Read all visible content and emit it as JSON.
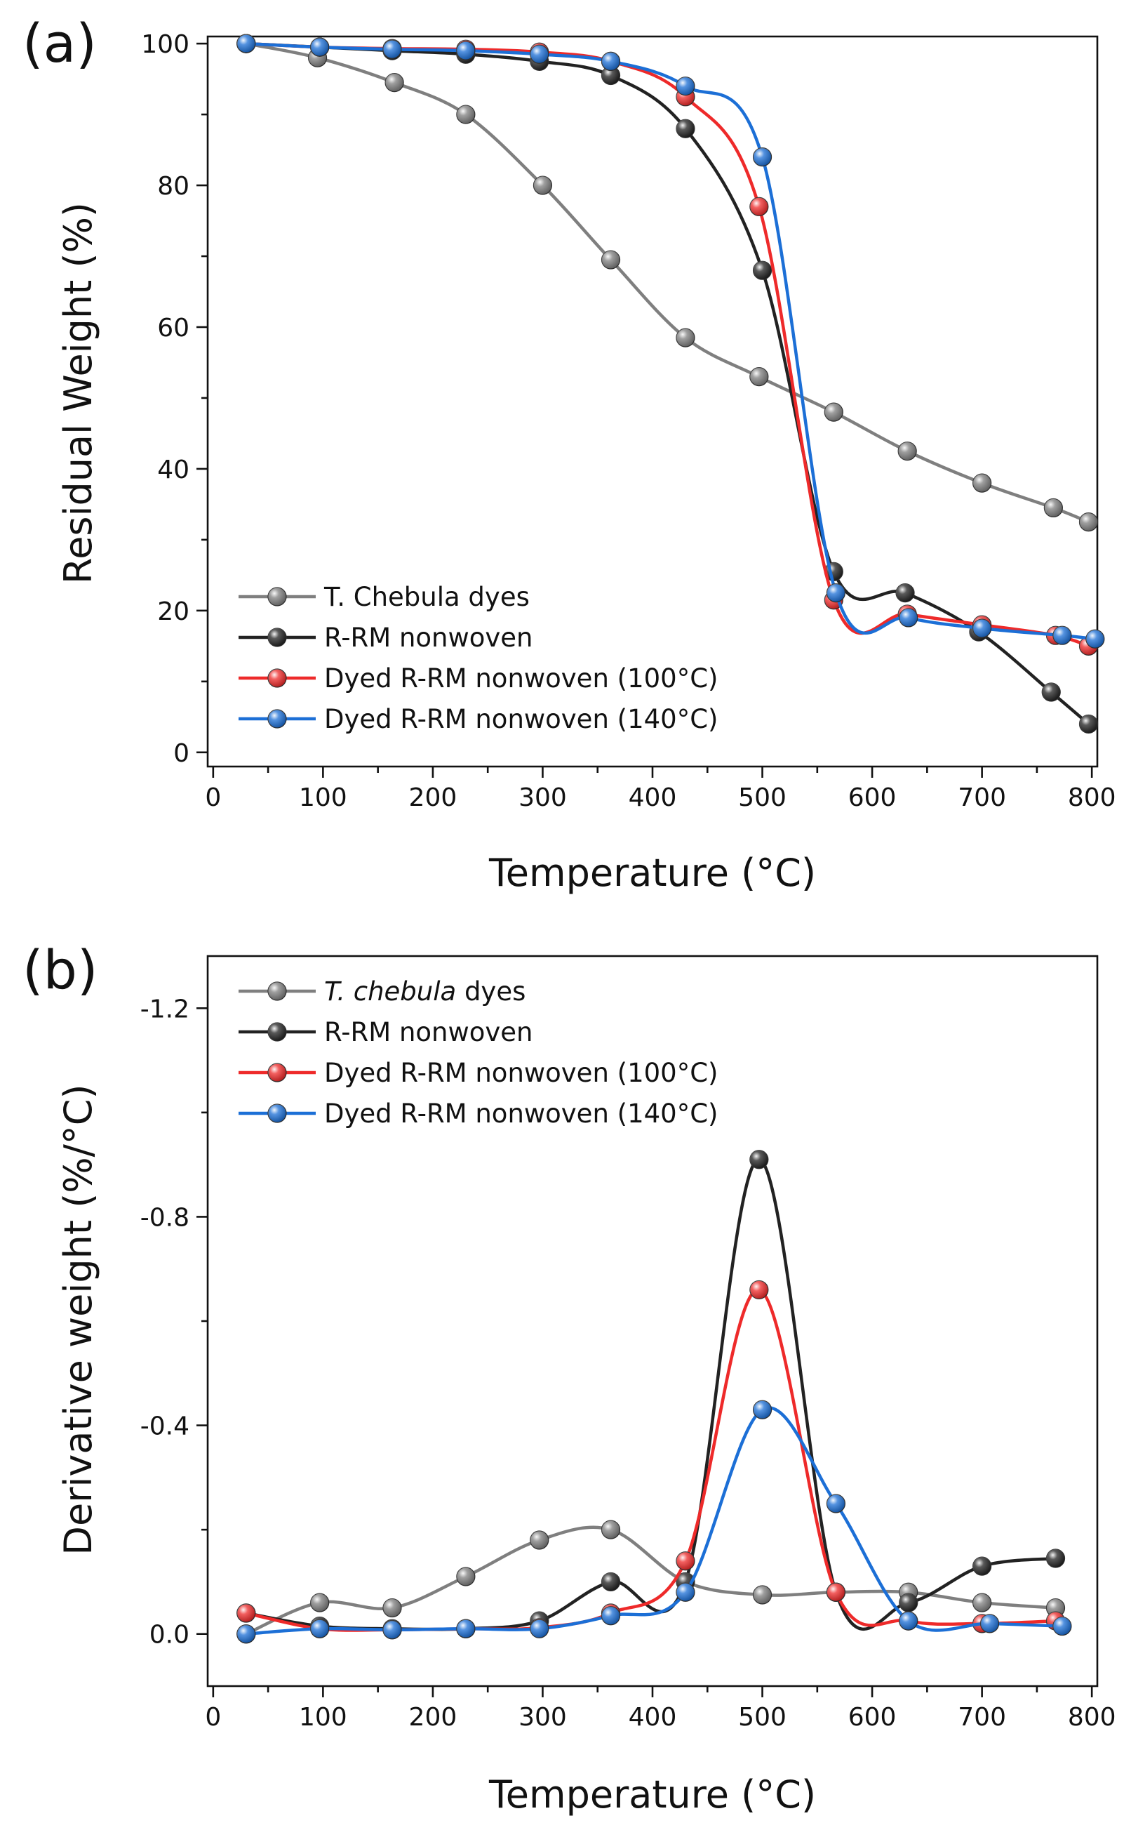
{
  "chart_data": [
    {
      "panel_label": "(a)",
      "type": "line",
      "xlabel": "Temperature (°C)",
      "ylabel": "Residual Weight (%)",
      "xlim": [
        -5,
        805
      ],
      "ylim": [
        -2,
        101
      ],
      "xticks": [
        0,
        100,
        200,
        300,
        400,
        500,
        600,
        700,
        800
      ],
      "yticks": [
        0,
        20,
        40,
        60,
        80,
        100
      ],
      "xtick_labels": [
        "0",
        "100",
        "200",
        "300",
        "400",
        "500",
        "600",
        "700",
        "800"
      ],
      "ytick_labels": [
        "0",
        "20",
        "40",
        "60",
        "80",
        "100"
      ],
      "legend_position": "bottom-left",
      "series": [
        {
          "name": "T. Chebula dyes",
          "color": "#7f7f7f",
          "x": [
            30,
            95,
            165,
            230,
            300,
            362,
            430,
            497,
            565,
            632,
            700,
            765,
            797
          ],
          "y": [
            100,
            98,
            94.5,
            90,
            80,
            69.5,
            58.5,
            53,
            48,
            42.5,
            38,
            34.5,
            32.5
          ]
        },
        {
          "name": "R-RM nonwoven",
          "color": "#222222",
          "x": [
            30,
            97,
            163,
            230,
            297,
            362,
            430,
            500,
            565,
            630,
            697,
            763,
            797
          ],
          "y": [
            100,
            99.5,
            99,
            98.5,
            97.5,
            95.5,
            88,
            68,
            25.5,
            22.5,
            17,
            8.5,
            4
          ]
        },
        {
          "name": "Dyed R-RM nonwoven (100°C)",
          "color": "#ee2a2a",
          "x": [
            30,
            97,
            163,
            230,
            297,
            362,
            430,
            497,
            565,
            632,
            700,
            767,
            797
          ],
          "y": [
            100,
            99.5,
            99.3,
            99.2,
            98.8,
            97.5,
            92.5,
            77,
            21.5,
            19.5,
            18,
            16.5,
            15
          ]
        },
        {
          "name": "Dyed R-RM nonwoven (140°C)",
          "color": "#1c6fd6",
          "x": [
            30,
            97,
            163,
            230,
            297,
            362,
            430,
            500,
            567,
            633,
            700,
            773,
            803
          ],
          "y": [
            100,
            99.5,
            99.2,
            99,
            98.5,
            97.5,
            94,
            84,
            22.5,
            19,
            17.5,
            16.5,
            16
          ]
        }
      ]
    },
    {
      "panel_label": "(b)",
      "type": "line",
      "xlabel": "Temperature (°C)",
      "ylabel": "Derivative weight (%/°C)",
      "xlim": [
        -5,
        805
      ],
      "ylim": [
        0.1,
        -1.3
      ],
      "xticks": [
        0,
        100,
        200,
        300,
        400,
        500,
        600,
        700,
        800
      ],
      "yticks": [
        0,
        -0.4,
        -0.8,
        -1.2
      ],
      "xtick_labels": [
        "0",
        "100",
        "200",
        "300",
        "400",
        "500",
        "600",
        "700",
        "800"
      ],
      "ytick_labels": [
        "0.0",
        "-0.4",
        "-0.8",
        "-1.2"
      ],
      "legend_position": "top-left",
      "series": [
        {
          "name": "T. chebula dyes",
          "italic_part": "T. chebula",
          "plain_part": " dyes",
          "color": "#7f7f7f",
          "x": [
            30,
            97,
            163,
            230,
            297,
            362,
            430,
            500,
            567,
            633,
            700,
            767
          ],
          "y": [
            0.0,
            -0.06,
            -0.05,
            -0.11,
            -0.18,
            -0.2,
            -0.1,
            -0.075,
            -0.08,
            -0.08,
            -0.06,
            -0.05
          ]
        },
        {
          "name": "R-RM nonwoven",
          "color": "#222222",
          "x": [
            30,
            97,
            163,
            230,
            297,
            362,
            430,
            497,
            567,
            633,
            700,
            767
          ],
          "y": [
            -0.04,
            -0.015,
            -0.01,
            -0.01,
            -0.025,
            -0.1,
            -0.1,
            -0.91,
            -0.08,
            -0.06,
            -0.13,
            -0.145
          ]
        },
        {
          "name": "Dyed R-RM nonwoven (100°C)",
          "color": "#ee2a2a",
          "x": [
            30,
            97,
            163,
            230,
            297,
            362,
            430,
            497,
            567,
            633,
            700,
            767
          ],
          "y": [
            -0.04,
            -0.01,
            -0.008,
            -0.01,
            -0.012,
            -0.04,
            -0.14,
            -0.66,
            -0.08,
            -0.025,
            -0.02,
            -0.025
          ]
        },
        {
          "name": "Dyed R-RM nonwoven (140°C)",
          "color": "#1c6fd6",
          "x": [
            30,
            97,
            163,
            230,
            297,
            362,
            430,
            500,
            567,
            633,
            707,
            773
          ],
          "y": [
            0.0,
            -0.01,
            -0.008,
            -0.01,
            -0.01,
            -0.035,
            -0.08,
            -0.43,
            -0.25,
            -0.025,
            -0.02,
            -0.015
          ]
        }
      ]
    }
  ]
}
